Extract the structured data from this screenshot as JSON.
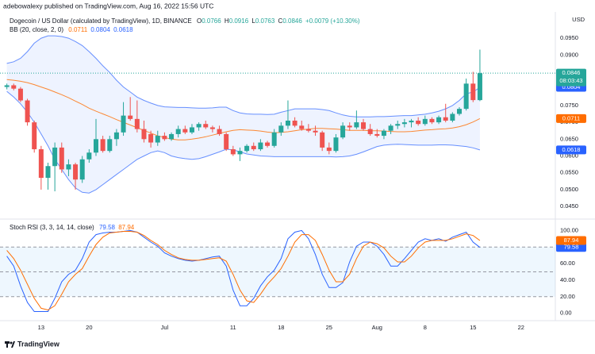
{
  "header": {
    "publisher": "adebowalexy published on TradingView.com, Aug 16, 2022 15:56 UTC"
  },
  "footer": {
    "brand": "TradingView"
  },
  "chart_data": [
    {
      "type": "candlestick",
      "title": "Dogecoin / US Dollar (calculated by TradingView), 1D, BINANCE",
      "currency": "USD",
      "ohlc_labels": [
        "O",
        "H",
        "L",
        "C"
      ],
      "change": "+0.0079 (+10.30%)",
      "countdown": "08:03:43",
      "up_color": "#26a69a",
      "down_color": "#ef5350",
      "x": [
        "Jun 8",
        "Jun 9",
        "Jun 10",
        "Jun 11",
        "Jun 12",
        "Jun 13",
        "Jun 14",
        "Jun 15",
        "Jun 16",
        "Jun 17",
        "Jun 18",
        "Jun 19",
        "Jun 20",
        "Jun 21",
        "Jun 22",
        "Jun 23",
        "Jun 24",
        "Jun 25",
        "Jun 26",
        "Jun 27",
        "Jun 28",
        "Jun 29",
        "Jun 30",
        "Jul 1",
        "Jul 2",
        "Jul 3",
        "Jul 4",
        "Jul 5",
        "Jul 6",
        "Jul 7",
        "Jul 8",
        "Jul 9",
        "Jul 10",
        "Jul 11",
        "Jul 12",
        "Jul 13",
        "Jul 14",
        "Jul 15",
        "Jul 16",
        "Jul 17",
        "Jul 18",
        "Jul 19",
        "Jul 20",
        "Jul 21",
        "Jul 22",
        "Jul 23",
        "Jul 24",
        "Jul 25",
        "Jul 26",
        "Jul 27",
        "Jul 28",
        "Jul 29",
        "Jul 30",
        "Jul 31",
        "Aug 1",
        "Aug 2",
        "Aug 3",
        "Aug 4",
        "Aug 5",
        "Aug 6",
        "Aug 7",
        "Aug 8",
        "Aug 9",
        "Aug 10",
        "Aug 11",
        "Aug 12",
        "Aug 13",
        "Aug 14",
        "Aug 15",
        "Aug 16"
      ],
      "open": [
        0.0805,
        0.081,
        0.08,
        0.0765,
        0.07,
        0.062,
        0.0535,
        0.057,
        0.0625,
        0.056,
        0.0575,
        0.053,
        0.059,
        0.061,
        0.065,
        0.0615,
        0.065,
        0.067,
        0.072,
        0.071,
        0.068,
        0.0665,
        0.064,
        0.066,
        0.065,
        0.0665,
        0.068,
        0.067,
        0.0685,
        0.0695,
        0.0685,
        0.068,
        0.0665,
        0.062,
        0.0605,
        0.0615,
        0.063,
        0.062,
        0.064,
        0.063,
        0.067,
        0.069,
        0.0705,
        0.069,
        0.068,
        0.0675,
        0.067,
        0.0625,
        0.0615,
        0.0655,
        0.069,
        0.0685,
        0.07,
        0.068,
        0.0665,
        0.066,
        0.0675,
        0.069,
        0.0695,
        0.07,
        0.0705,
        0.0695,
        0.071,
        0.07,
        0.0715,
        0.0705,
        0.0725,
        0.074,
        0.0815,
        0.0766
      ],
      "high": [
        0.0815,
        0.0815,
        0.0805,
        0.077,
        0.0705,
        0.063,
        0.058,
        0.064,
        0.064,
        0.059,
        0.058,
        0.06,
        0.062,
        0.071,
        0.066,
        0.066,
        0.068,
        0.076,
        0.0775,
        0.0765,
        0.0705,
        0.0675,
        0.0675,
        0.067,
        0.067,
        0.069,
        0.069,
        0.0695,
        0.07,
        0.0705,
        0.069,
        0.069,
        0.067,
        0.063,
        0.0625,
        0.0635,
        0.064,
        0.065,
        0.0645,
        0.068,
        0.07,
        0.0765,
        0.0715,
        0.0705,
        0.0695,
        0.069,
        0.0675,
        0.064,
        0.0665,
        0.07,
        0.07,
        0.0735,
        0.071,
        0.0695,
        0.068,
        0.068,
        0.0695,
        0.0705,
        0.071,
        0.071,
        0.0715,
        0.072,
        0.0715,
        0.072,
        0.0755,
        0.073,
        0.0745,
        0.083,
        0.085,
        0.0916
      ],
      "low": [
        0.0798,
        0.0795,
        0.076,
        0.069,
        0.061,
        0.05,
        0.05,
        0.0495,
        0.055,
        0.054,
        0.05,
        0.052,
        0.058,
        0.06,
        0.061,
        0.061,
        0.063,
        0.066,
        0.0705,
        0.067,
        0.064,
        0.0625,
        0.063,
        0.0645,
        0.0645,
        0.0655,
        0.0665,
        0.0665,
        0.0675,
        0.068,
        0.067,
        0.066,
        0.0615,
        0.06,
        0.0585,
        0.061,
        0.0615,
        0.0615,
        0.0625,
        0.0625,
        0.066,
        0.068,
        0.0685,
        0.0675,
        0.067,
        0.066,
        0.0615,
        0.0605,
        0.061,
        0.065,
        0.0675,
        0.068,
        0.0675,
        0.066,
        0.0655,
        0.065,
        0.0665,
        0.068,
        0.0685,
        0.0685,
        0.069,
        0.069,
        0.0695,
        0.0695,
        0.07,
        0.07,
        0.072,
        0.0735,
        0.076,
        0.0763
      ],
      "close": [
        0.081,
        0.08,
        0.0765,
        0.07,
        0.062,
        0.0535,
        0.057,
        0.0625,
        0.056,
        0.0575,
        0.053,
        0.059,
        0.061,
        0.065,
        0.0615,
        0.065,
        0.067,
        0.072,
        0.071,
        0.068,
        0.065,
        0.064,
        0.066,
        0.065,
        0.0665,
        0.068,
        0.067,
        0.0685,
        0.0695,
        0.0685,
        0.068,
        0.0665,
        0.062,
        0.0605,
        0.0615,
        0.063,
        0.062,
        0.064,
        0.063,
        0.067,
        0.069,
        0.0705,
        0.069,
        0.068,
        0.0675,
        0.067,
        0.0625,
        0.0615,
        0.0655,
        0.069,
        0.0685,
        0.07,
        0.068,
        0.0665,
        0.066,
        0.0675,
        0.069,
        0.0695,
        0.07,
        0.0705,
        0.0695,
        0.071,
        0.07,
        0.0715,
        0.0705,
        0.0725,
        0.074,
        0.0815,
        0.0766,
        0.0846
      ],
      "indicator": {
        "name": "BB (20, close, 2, 0)",
        "basis_color": "#ff6d00",
        "band_color": "#2962ff",
        "basis": [
          0.0827,
          0.0825,
          0.0822,
          0.0818,
          0.0812,
          0.0805,
          0.0798,
          0.079,
          0.0782,
          0.0773,
          0.0763,
          0.0753,
          0.0742,
          0.0733,
          0.0725,
          0.0717,
          0.0708,
          0.07,
          0.0692,
          0.0684,
          0.0676,
          0.0668,
          0.066,
          0.0655,
          0.065,
          0.0648,
          0.0648,
          0.065,
          0.0653,
          0.0657,
          0.0662,
          0.0667,
          0.0672,
          0.0676,
          0.0678,
          0.0677,
          0.0676,
          0.0674,
          0.0671,
          0.0669,
          0.067,
          0.0672,
          0.0675,
          0.0678,
          0.068,
          0.0682,
          0.0682,
          0.0681,
          0.068,
          0.0678,
          0.0676,
          0.0676,
          0.0676,
          0.0675,
          0.0675,
          0.0674,
          0.0673,
          0.0672,
          0.0672,
          0.0673,
          0.0675,
          0.0677,
          0.0678,
          0.068,
          0.0681,
          0.0683,
          0.0687,
          0.0693,
          0.0701,
          0.0711
        ],
        "upper": [
          0.0875,
          0.088,
          0.089,
          0.091,
          0.0935,
          0.095,
          0.0957,
          0.0957,
          0.0955,
          0.095,
          0.094,
          0.0928,
          0.091,
          0.089,
          0.0868,
          0.0848,
          0.0825,
          0.0805,
          0.079,
          0.0775,
          0.0765,
          0.0757,
          0.075,
          0.0746,
          0.0745,
          0.0744,
          0.0744,
          0.0743,
          0.0742,
          0.0742,
          0.0743,
          0.0745,
          0.0745,
          0.0735,
          0.0728,
          0.0725,
          0.0724,
          0.0724,
          0.0723,
          0.0724,
          0.073,
          0.0735,
          0.074,
          0.074,
          0.074,
          0.074,
          0.0738,
          0.0735,
          0.0728,
          0.0722,
          0.0718,
          0.0716,
          0.0716,
          0.0716,
          0.0717,
          0.0717,
          0.0718,
          0.0719,
          0.072,
          0.072,
          0.0722,
          0.0724,
          0.0728,
          0.0733,
          0.074,
          0.075,
          0.0765,
          0.0785,
          0.079,
          0.0804
        ],
        "lower": [
          0.0792,
          0.0775,
          0.0755,
          0.073,
          0.07,
          0.0665,
          0.063,
          0.059,
          0.056,
          0.053,
          0.0505,
          0.0492,
          0.049,
          0.05,
          0.0515,
          0.053,
          0.0545,
          0.056,
          0.0575,
          0.059,
          0.06,
          0.061,
          0.0615,
          0.061,
          0.06,
          0.0595,
          0.0592,
          0.059,
          0.0592,
          0.0598,
          0.0605,
          0.0612,
          0.062,
          0.0618,
          0.0612,
          0.0606,
          0.0603,
          0.06,
          0.0599,
          0.0598,
          0.0598,
          0.0598,
          0.0598,
          0.0598,
          0.0598,
          0.0598,
          0.0598,
          0.0598,
          0.0597,
          0.0598,
          0.06,
          0.0605,
          0.0612,
          0.062,
          0.0628,
          0.0632,
          0.0634,
          0.0635,
          0.0634,
          0.0633,
          0.0632,
          0.0632,
          0.0632,
          0.0633,
          0.0633,
          0.0632,
          0.063,
          0.0628,
          0.0624,
          0.0618
        ]
      },
      "xlim": [
        "Jun 7",
        "Aug 27"
      ],
      "xticks": [
        {
          "value": "Jun 13",
          "label": "13"
        },
        {
          "value": "Jun 20",
          "label": "20"
        },
        {
          "value": "Jul 1",
          "label": "Jul"
        },
        {
          "value": "Jul 11",
          "label": "11"
        },
        {
          "value": "Jul 18",
          "label": "18"
        },
        {
          "value": "Jul 25",
          "label": "25"
        },
        {
          "value": "Aug 1",
          "label": "Aug"
        },
        {
          "value": "Aug 8",
          "label": "8"
        },
        {
          "value": "Aug 15",
          "label": "15"
        },
        {
          "value": "Aug 22",
          "label": "22"
        }
      ],
      "ylim": [
        0.0422,
        0.1028
      ],
      "yticks": [
        {
          "value": 0.045,
          "label": "0.0450"
        },
        {
          "value": 0.05,
          "label": "0.0500"
        },
        {
          "value": 0.055,
          "label": "0.0550"
        },
        {
          "value": 0.06,
          "label": "0.0600"
        },
        {
          "value": 0.065,
          "label": "0.0650"
        },
        {
          "value": 0.07,
          "label": "0.0700"
        },
        {
          "value": 0.075,
          "label": "0.0750"
        },
        {
          "value": 0.08,
          "label": "0.0800"
        },
        {
          "value": 0.085,
          "label": "0.0850"
        },
        {
          "value": 0.09,
          "label": "0.0900"
        },
        {
          "value": 0.095,
          "label": "0.0950"
        }
      ],
      "grid": false
    },
    {
      "type": "line",
      "title": "Stoch RSI (3, 3, 14, 14, close)",
      "series": [
        {
          "color": "#2962ff",
          "values": [
            69,
            57,
            33,
            13,
            2,
            2,
            2,
            18,
            38,
            47,
            52,
            66,
            86,
            95,
            97,
            98,
            98,
            99,
            100,
            98,
            92,
            86,
            81,
            73,
            69,
            66,
            64,
            63,
            64,
            66,
            68,
            69,
            57,
            28,
            9,
            9,
            18,
            33,
            44,
            52,
            66,
            90,
            98,
            100,
            90,
            71,
            47,
            31,
            31,
            37,
            62,
            81,
            86,
            86,
            81,
            71,
            57,
            57,
            66,
            76,
            86,
            90,
            88,
            90,
            87,
            92,
            95,
            98,
            86,
            79.58
          ]
        },
        {
          "color": "#ff6d00",
          "values": [
            76,
            66,
            52,
            35,
            18,
            6,
            4,
            9,
            23,
            38,
            47,
            54,
            69,
            83,
            92,
            97,
            98,
            99,
            99,
            98,
            94,
            88,
            83,
            76,
            71,
            67,
            65,
            64,
            64,
            65,
            66,
            67,
            63,
            47,
            28,
            15,
            13,
            23,
            35,
            44,
            54,
            69,
            86,
            95,
            95,
            88,
            71,
            52,
            38,
            38,
            47,
            66,
            81,
            86,
            84,
            79,
            69,
            62,
            62,
            69,
            79,
            86,
            88,
            88,
            88,
            90,
            93,
            96,
            94,
            87.94
          ]
        }
      ],
      "hlines": [
        80,
        50,
        20
      ],
      "band_color": "#2196f3",
      "ylim": [
        -9,
        110
      ],
      "yticks": [
        {
          "value": 0,
          "label": "0.00"
        },
        {
          "value": 20,
          "label": "20.00"
        },
        {
          "value": 40,
          "label": "40.00"
        },
        {
          "value": 60,
          "label": "60.00"
        },
        {
          "value": 80,
          "label": "80.00"
        },
        {
          "value": 100,
          "label": "100.00"
        }
      ],
      "grid": false
    }
  ]
}
